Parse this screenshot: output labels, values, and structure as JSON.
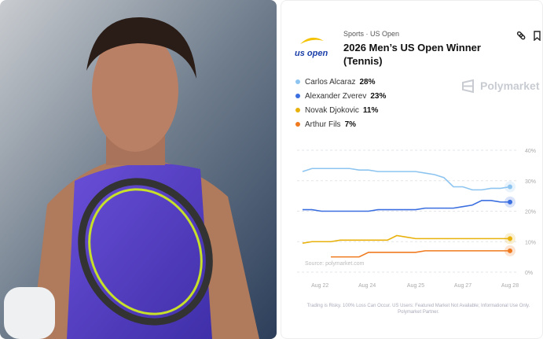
{
  "header": {
    "category": "Sports · US Open",
    "title": "2026 Men’s US Open Winner (Tennis)",
    "logo": "us open",
    "brand": "Polymarket"
  },
  "chart_data": {
    "type": "line",
    "x": [
      0,
      2,
      4,
      6,
      8,
      10,
      12,
      14,
      16,
      18,
      20,
      22,
      24,
      26,
      28,
      30,
      32,
      34,
      36,
      38,
      40,
      42,
      44
    ],
    "xlim": [
      0,
      44
    ],
    "xticks": [
      {
        "value": 3.7,
        "label": "Aug 22"
      },
      {
        "value": 13.7,
        "label": "Aug 24"
      },
      {
        "value": 24,
        "label": "Aug 25"
      },
      {
        "value": 34,
        "label": "Aug 27"
      },
      {
        "value": 44,
        "label": "Aug 28"
      }
    ],
    "ylim": [
      0,
      40
    ],
    "yticks": [
      {
        "value": 0,
        "label": "0%"
      },
      {
        "value": 10,
        "label": "10%"
      },
      {
        "value": 20,
        "label": "20%"
      },
      {
        "value": 30,
        "label": "30%"
      },
      {
        "value": 40,
        "label": "40%"
      }
    ],
    "grid": true,
    "series": [
      {
        "name": "Carlos Alcaraz",
        "color": "#8ec5f0",
        "current": {
          "value": 28,
          "label": "28%"
        },
        "values": [
          33,
          34,
          34,
          34,
          34,
          34,
          33.5,
          33.5,
          33,
          33,
          33,
          33,
          33,
          32.5,
          32,
          31,
          28,
          28,
          27,
          27,
          27.5,
          27.5,
          28
        ]
      },
      {
        "name": "Alexander Zverev",
        "color": "#3b6fe0",
        "current": {
          "value": 23,
          "label": "23%"
        },
        "values": [
          20.5,
          20.5,
          20,
          20,
          20,
          20,
          20,
          20,
          20.5,
          20.5,
          20.5,
          20.5,
          20.5,
          21,
          21,
          21,
          21,
          21.5,
          22,
          23.5,
          23.5,
          23,
          23
        ]
      },
      {
        "name": "Novak Djokovic",
        "color": "#e8b10c",
        "current": {
          "value": 11,
          "label": "11%"
        },
        "values": [
          9.5,
          10,
          10,
          10,
          10.5,
          10.5,
          10.5,
          10.5,
          10.5,
          10.5,
          12,
          11.5,
          11,
          11,
          11,
          11,
          11,
          11,
          11,
          11,
          11,
          11,
          11
        ]
      },
      {
        "name": "Arthur Fils",
        "color": "#f07a1f",
        "current": {
          "value": 7,
          "label": "7%"
        },
        "values": [
          null,
          null,
          null,
          5,
          5,
          5,
          5,
          6.5,
          6.5,
          6.5,
          6.5,
          6.5,
          6.5,
          7,
          7,
          7,
          7,
          7,
          7,
          7,
          7,
          7,
          7
        ]
      }
    ],
    "source": "Source: polymarket.com"
  },
  "footer": "Trading is Risky. 100% Loss Can Occur. US Users: Featured Market Not Available; Informational Use Only. Polymarket Partner."
}
